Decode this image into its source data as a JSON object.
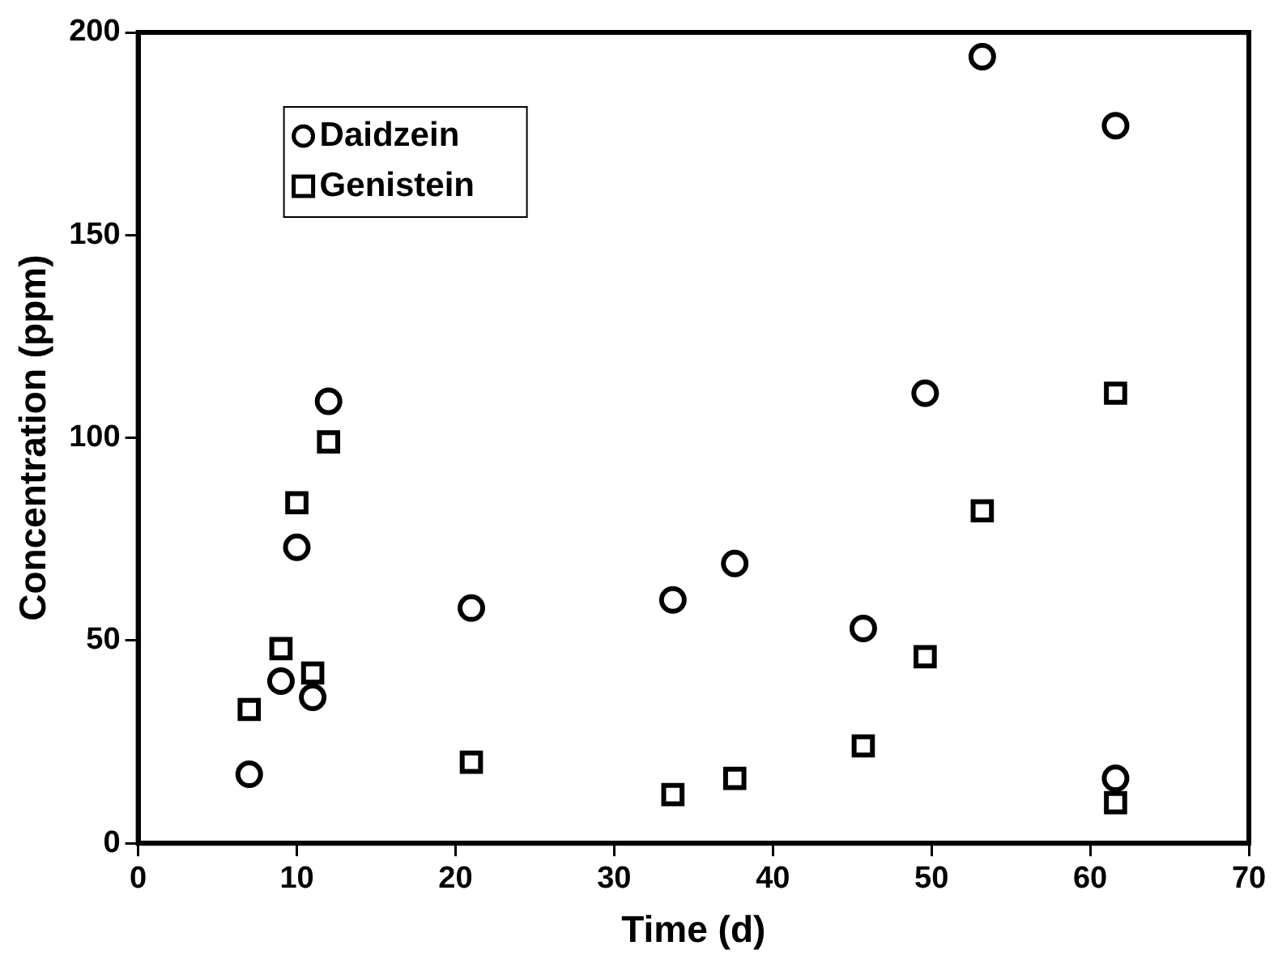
{
  "chart_data": {
    "type": "scatter",
    "xlabel": "Time (d)",
    "ylabel": "Concentration (ppm)",
    "xlim": [
      0,
      70
    ],
    "xticks": [
      0,
      10,
      20,
      30,
      40,
      50,
      60,
      70
    ],
    "ylim": [
      0,
      200
    ],
    "yticks": [
      0,
      50,
      100,
      150,
      200
    ],
    "grid": false,
    "legend": "top left",
    "series": [
      {
        "name": "Daidzein",
        "color": "#000000",
        "marker": "circle",
        "x": [
          7,
          9,
          10,
          11,
          12,
          21,
          33.7,
          37.6,
          45.7,
          49.6,
          53.2,
          61.6,
          61.6
        ],
        "values": [
          17,
          40,
          73,
          36,
          109,
          58,
          60,
          69,
          53,
          111,
          194,
          177,
          16
        ]
      },
      {
        "name": "Genistein",
        "color": "#000000",
        "marker": "square",
        "x": [
          7,
          9,
          10,
          11,
          12,
          21,
          33.7,
          37.6,
          45.7,
          49.6,
          53.2,
          61.6,
          61.6
        ],
        "values": [
          33,
          48,
          84,
          42,
          99,
          20,
          12,
          16,
          24,
          46,
          82,
          111,
          10
        ]
      }
    ]
  }
}
